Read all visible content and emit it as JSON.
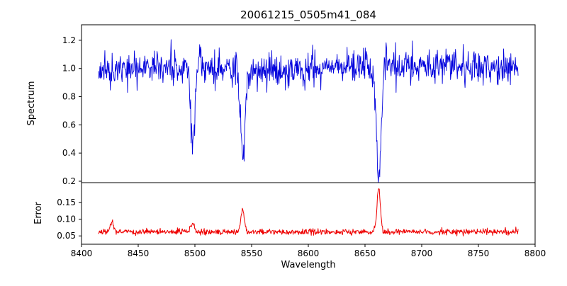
{
  "title": "20061215_0505m41_084",
  "axes": {
    "xlabel": "Wavelength",
    "spectrum_ylabel": "Spectrum",
    "error_ylabel": "Error"
  },
  "chart_data": [
    {
      "type": "line",
      "name": "spectrum",
      "title": "20061215_0505m41_084",
      "xlabel": "Wavelength",
      "ylabel": "Spectrum",
      "line_color": "#0000dd",
      "grid": false,
      "legend": null,
      "xlim": [
        8400,
        8800
      ],
      "ylim": [
        0.19,
        1.31
      ],
      "xticks": [
        8400,
        8450,
        8500,
        8550,
        8600,
        8650,
        8700,
        8750,
        8800
      ],
      "xtick_labels": [
        "8400",
        "8450",
        "8500",
        "8550",
        "8600",
        "8650",
        "8700",
        "8750",
        "8800"
      ],
      "yticks": [
        0.2,
        0.4,
        0.6,
        0.8,
        1.0,
        1.2
      ],
      "ytick_labels": [
        "0.2",
        "0.4",
        "0.6",
        "0.8",
        "1.0",
        "1.2"
      ],
      "x_data_range": [
        8415,
        8785
      ],
      "sample_step": 0.4,
      "baseline": 1.0,
      "noise_sigma": 0.06,
      "absorption_lines": [
        {
          "center": 8498.0,
          "min_value": 0.42,
          "sigma": 1.8
        },
        {
          "center": 8542.1,
          "min_value": 0.34,
          "sigma": 2.0
        },
        {
          "center": 8662.1,
          "min_value": 0.24,
          "sigma": 2.1
        }
      ]
    },
    {
      "type": "line",
      "name": "error",
      "title": "",
      "xlabel": "Wavelength",
      "ylabel": "Error",
      "line_color": "#ee0000",
      "grid": false,
      "legend": null,
      "xlim": [
        8400,
        8800
      ],
      "ylim": [
        0.025,
        0.21
      ],
      "xticks": [
        8400,
        8450,
        8500,
        8550,
        8600,
        8650,
        8700,
        8750,
        8800
      ],
      "xtick_labels": [
        "8400",
        "8450",
        "8500",
        "8550",
        "8600",
        "8650",
        "8700",
        "8750",
        "8800"
      ],
      "yticks": [
        0.05,
        0.1,
        0.15
      ],
      "ytick_labels": [
        "0.05",
        "0.10",
        "0.15"
      ],
      "x_data_range": [
        8415,
        8785
      ],
      "sample_step": 0.4,
      "baseline": 0.062,
      "noise_sigma": 0.0045,
      "emission_spikes": [
        {
          "center": 8427.0,
          "peak_value": 0.092,
          "sigma": 1.5
        },
        {
          "center": 8498.0,
          "peak_value": 0.088,
          "sigma": 1.5
        },
        {
          "center": 8542.1,
          "peak_value": 0.128,
          "sigma": 1.6
        },
        {
          "center": 8662.1,
          "peak_value": 0.192,
          "sigma": 1.5
        }
      ]
    }
  ]
}
